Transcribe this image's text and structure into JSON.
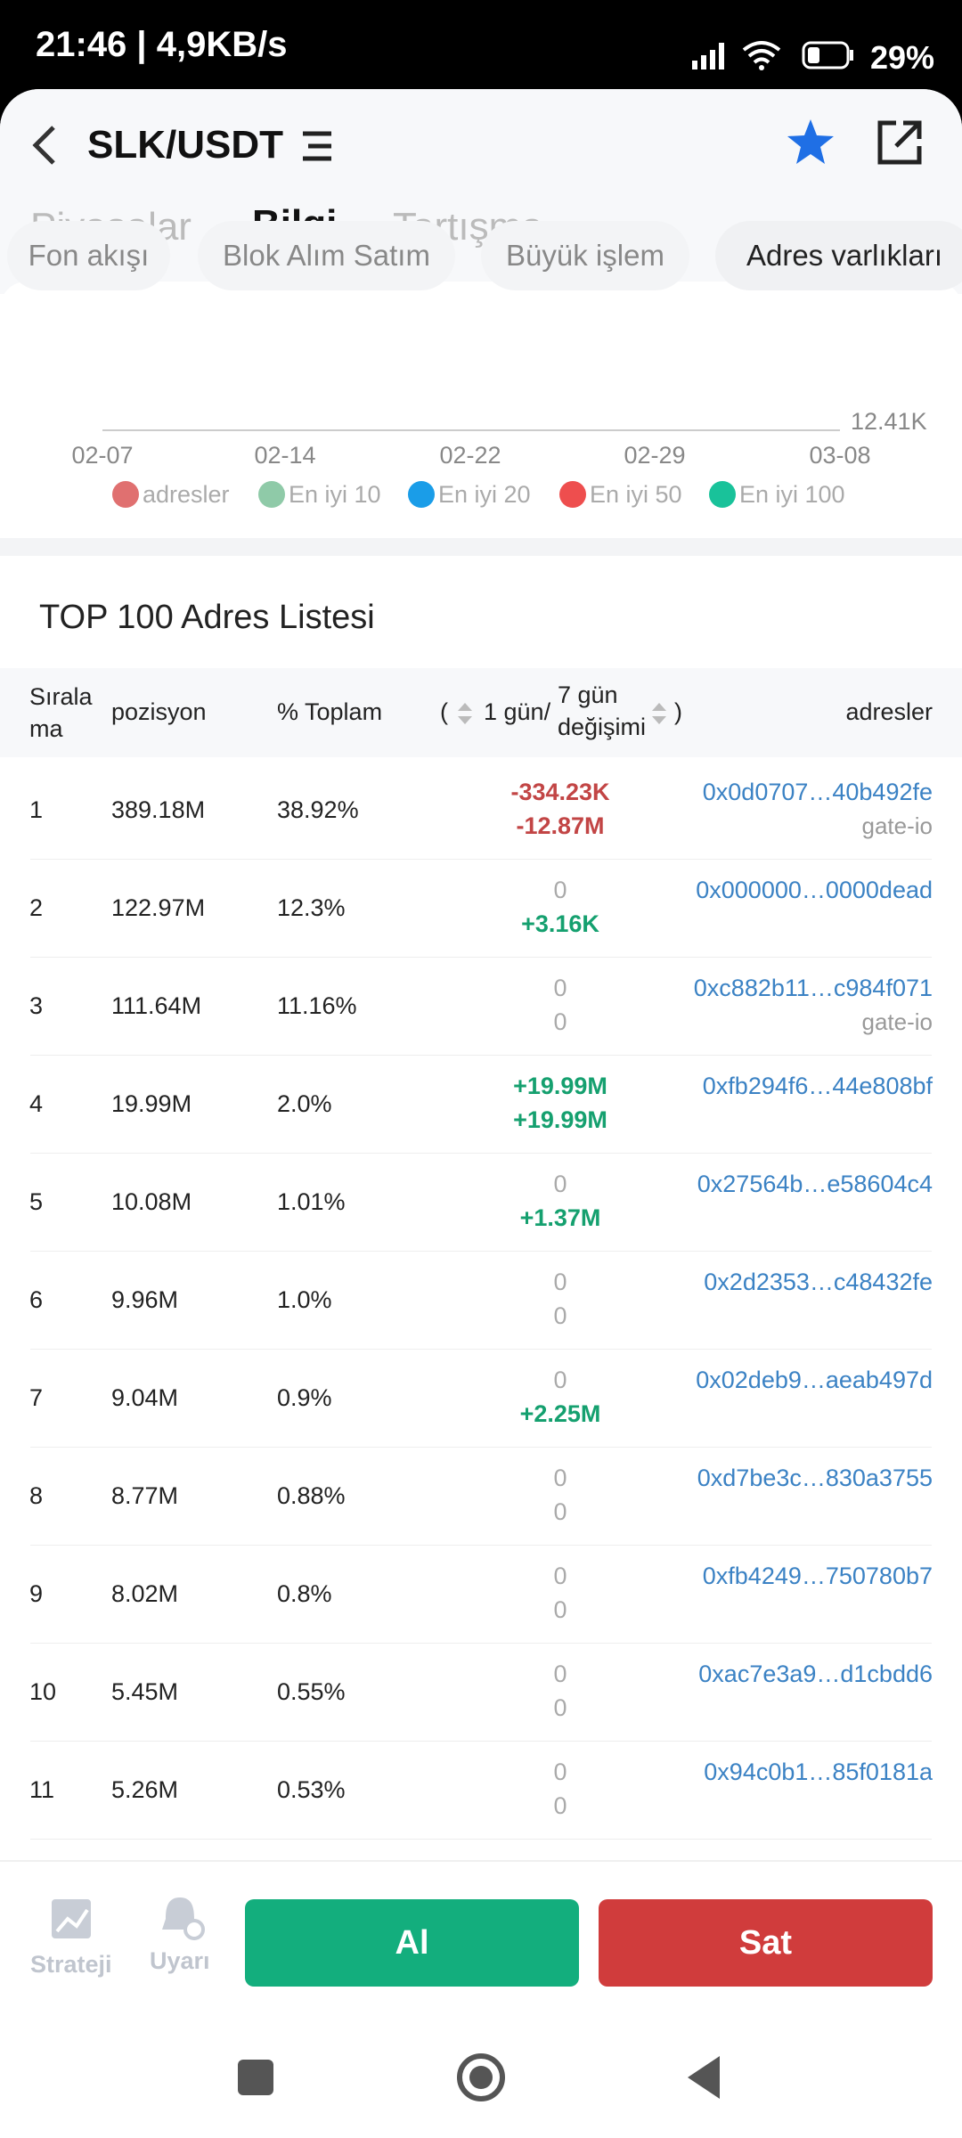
{
  "status": {
    "time": "21:46 | 4,9KB/s",
    "battery": "29%"
  },
  "header": {
    "title": "SLK/USDT"
  },
  "tabs": [
    "Piyasalar",
    "Bilgi",
    "Tartışma"
  ],
  "subtabs": [
    "Fon akışı",
    "Blok Alım Satım",
    "Büyük işlem",
    "Adres varlıkları"
  ],
  "chart": {
    "x_labels": [
      "02-07",
      "02-14",
      "02-22",
      "02-29",
      "03-08"
    ],
    "right_label": "12.41K",
    "legend": [
      {
        "name": "adresler",
        "color": "#e07070"
      },
      {
        "name": "En iyi 10",
        "color": "#8fcaa8"
      },
      {
        "name": "En iyi 20",
        "color": "#1a9de8"
      },
      {
        "name": "En iyi 50",
        "color": "#ee4e4e"
      },
      {
        "name": "En iyi 100",
        "color": "#19c29a"
      }
    ]
  },
  "table": {
    "title": "TOP 100 Adres Listesi",
    "columns": {
      "rank": "Sıralama",
      "position": "pozisyon",
      "percent": "% Toplam",
      "change_open": "(",
      "change_1d": "1 gün/",
      "change_7d": "7 gün değişimi",
      "change_close": ")",
      "address": "adresler"
    },
    "rows": [
      {
        "rank": "1",
        "position": "389.18M",
        "percent": "38.92%",
        "change_1d": "-334.23K",
        "change_7d": "-12.87M",
        "address": "0x0d0707…40b492fe",
        "label": "gate-io"
      },
      {
        "rank": "2",
        "position": "122.97M",
        "percent": "12.3%",
        "change_1d": "0",
        "change_7d": "+3.16K",
        "address": "0x000000…0000dead"
      },
      {
        "rank": "3",
        "position": "111.64M",
        "percent": "11.16%",
        "change_1d": "0",
        "change_7d": "0",
        "address": "0xc882b11…c984f071",
        "label": "gate-io"
      },
      {
        "rank": "4",
        "position": "19.99M",
        "percent": "2.0%",
        "change_1d": "+19.99M",
        "change_7d": "+19.99M",
        "address": "0xfb294f6…44e808bf"
      },
      {
        "rank": "5",
        "position": "10.08M",
        "percent": "1.01%",
        "change_1d": "0",
        "change_7d": "+1.37M",
        "address": "0x27564b…e58604c4"
      },
      {
        "rank": "6",
        "position": "9.96M",
        "percent": "1.0%",
        "change_1d": "0",
        "change_7d": "0",
        "address": "0x2d2353…c48432fe"
      },
      {
        "rank": "7",
        "position": "9.04M",
        "percent": "0.9%",
        "change_1d": "0",
        "change_7d": "+2.25M",
        "address": "0x02deb9…aeab497d"
      },
      {
        "rank": "8",
        "position": "8.77M",
        "percent": "0.88%",
        "change_1d": "0",
        "change_7d": "0",
        "address": "0xd7be3c…830a3755"
      },
      {
        "rank": "9",
        "position": "8.02M",
        "percent": "0.8%",
        "change_1d": "0",
        "change_7d": "0",
        "address": "0xfb4249…750780b7"
      },
      {
        "rank": "10",
        "position": "5.45M",
        "percent": "0.55%",
        "change_1d": "0",
        "change_7d": "0",
        "address": "0xac7e3a9…d1cbdd6"
      },
      {
        "rank": "11",
        "position": "5.26M",
        "percent": "0.53%",
        "change_1d": "0",
        "change_7d": "0",
        "address": "0x94c0b1…85f0181a"
      }
    ]
  },
  "bottom": {
    "strategy": "Strateji",
    "alert": "Uyarı",
    "buy": "Al",
    "sell": "Sat"
  }
}
